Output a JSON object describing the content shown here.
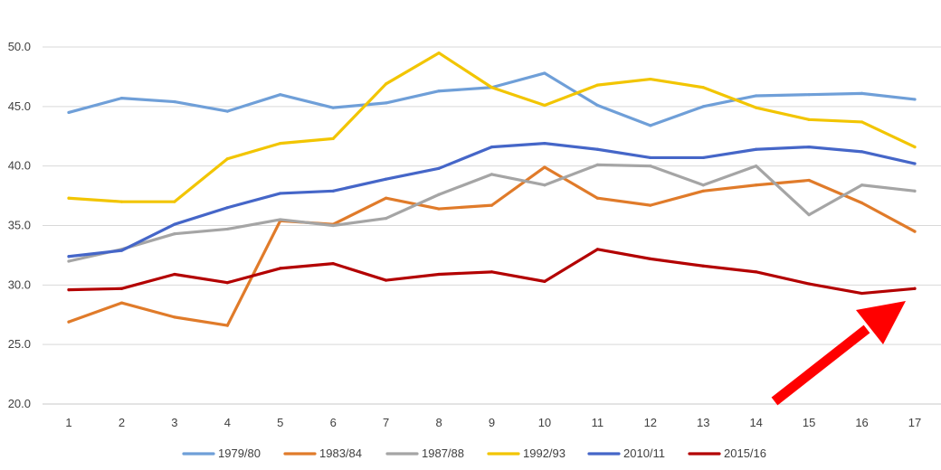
{
  "chart_data": {
    "type": "line",
    "title": "",
    "xlabel": "",
    "ylabel": "",
    "x": [
      "1",
      "2",
      "3",
      "4",
      "5",
      "6",
      "7",
      "8",
      "9",
      "10",
      "11",
      "12",
      "13",
      "14",
      "15",
      "16",
      "17"
    ],
    "ylim": [
      20,
      50
    ],
    "yticks": [
      "20.0",
      "25.0",
      "30.0",
      "35.0",
      "40.0",
      "45.0",
      "50.0"
    ],
    "ytick_values": [
      20,
      25,
      30,
      35,
      40,
      45,
      50
    ],
    "grid": true,
    "legend_position": "bottom",
    "series": [
      {
        "name": "1979/80",
        "color": "#6f9fd8",
        "values": [
          44.5,
          45.7,
          45.4,
          44.6,
          46.0,
          44.9,
          45.3,
          46.3,
          46.6,
          47.8,
          45.1,
          43.4,
          45.0,
          45.9,
          46.0,
          46.1,
          45.6
        ]
      },
      {
        "name": "1983/84",
        "color": "#e07b2a",
        "values": [
          26.9,
          28.5,
          27.3,
          26.6,
          35.4,
          35.1,
          37.3,
          36.4,
          36.7,
          39.9,
          37.3,
          36.7,
          37.9,
          38.4,
          38.8,
          36.9,
          34.5
        ]
      },
      {
        "name": "1987/88",
        "color": "#a5a5a5",
        "values": [
          32.0,
          33.0,
          34.3,
          34.7,
          35.5,
          35.0,
          35.6,
          37.6,
          39.3,
          38.4,
          40.1,
          40.0,
          38.4,
          40.0,
          35.9,
          38.4,
          37.9
        ]
      },
      {
        "name": "1992/93",
        "color": "#f2c500",
        "values": [
          37.3,
          37.0,
          37.0,
          40.6,
          41.9,
          42.3,
          46.9,
          49.5,
          46.6,
          45.1,
          46.8,
          47.3,
          46.6,
          44.9,
          43.9,
          43.7,
          41.6
        ]
      },
      {
        "name": "2010/11",
        "color": "#4566c8",
        "values": [
          32.4,
          32.9,
          35.1,
          36.5,
          37.7,
          37.9,
          38.9,
          39.8,
          41.6,
          41.9,
          41.4,
          40.7,
          40.7,
          41.4,
          41.6,
          41.2,
          40.2
        ]
      },
      {
        "name": "2015/16",
        "color": "#b30000",
        "values": [
          29.6,
          29.7,
          30.9,
          30.2,
          31.4,
          31.8,
          30.4,
          30.9,
          31.1,
          30.3,
          33.0,
          32.2,
          31.6,
          31.1,
          30.1,
          29.3,
          29.7
        ]
      }
    ],
    "annotations": [
      {
        "type": "arrow",
        "color": "#ff0000",
        "points_to": "2015/16 at x=17"
      }
    ]
  }
}
